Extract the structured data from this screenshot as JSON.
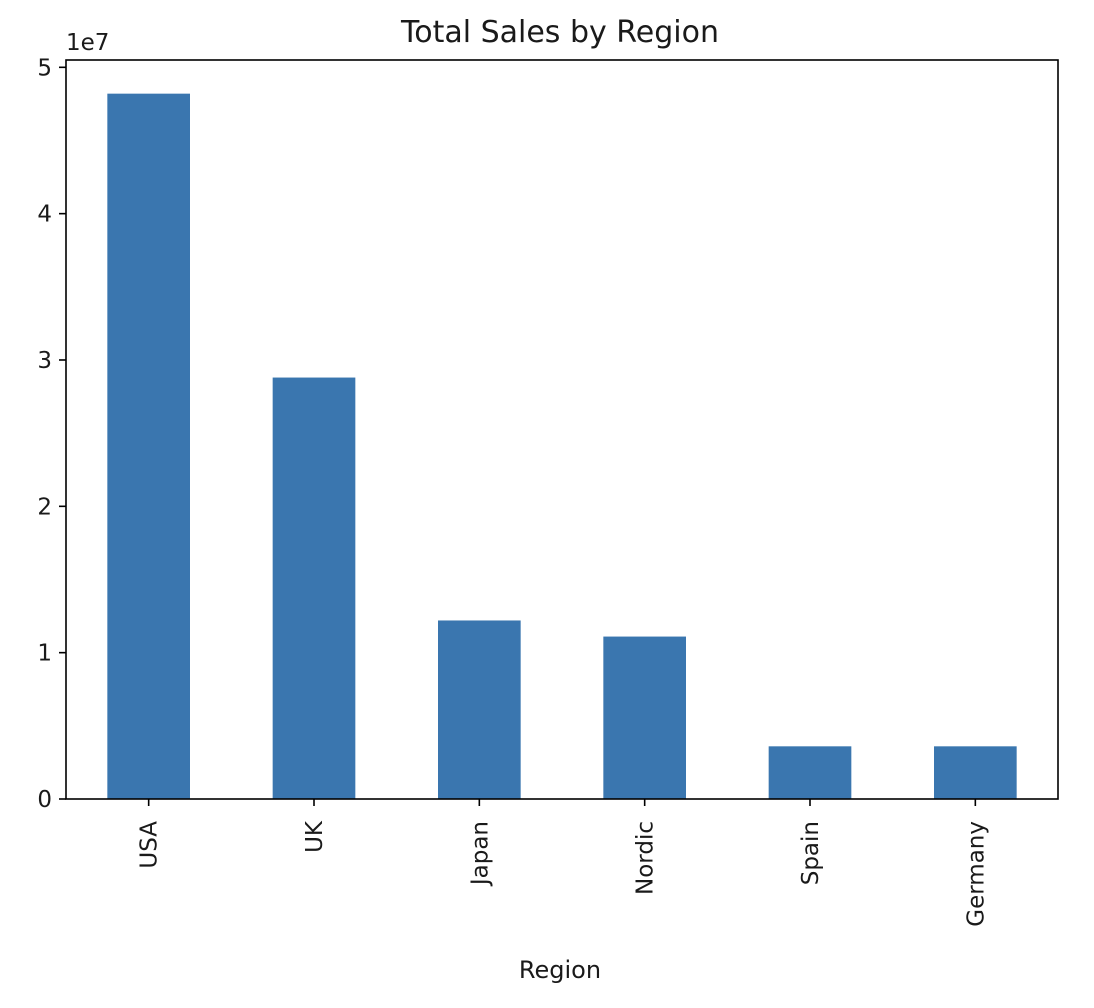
{
  "chart_data": {
    "type": "bar",
    "title": "Total Sales by Region",
    "xlabel": "Region",
    "ylabel": "",
    "y_offset_label": "1e7",
    "y_scale": 10000000,
    "categories": [
      "USA",
      "UK",
      "Japan",
      "Nordic",
      "Spain",
      "Germany"
    ],
    "values": [
      48200000,
      28800000,
      12200000,
      11100000,
      3600000,
      3600000
    ],
    "ylim": [
      0,
      50500000
    ],
    "yticks": [
      0,
      1,
      2,
      3,
      4,
      5
    ],
    "grid": false,
    "legend": "none",
    "bar_color": "#3a76af",
    "axis_color": "#000000"
  }
}
